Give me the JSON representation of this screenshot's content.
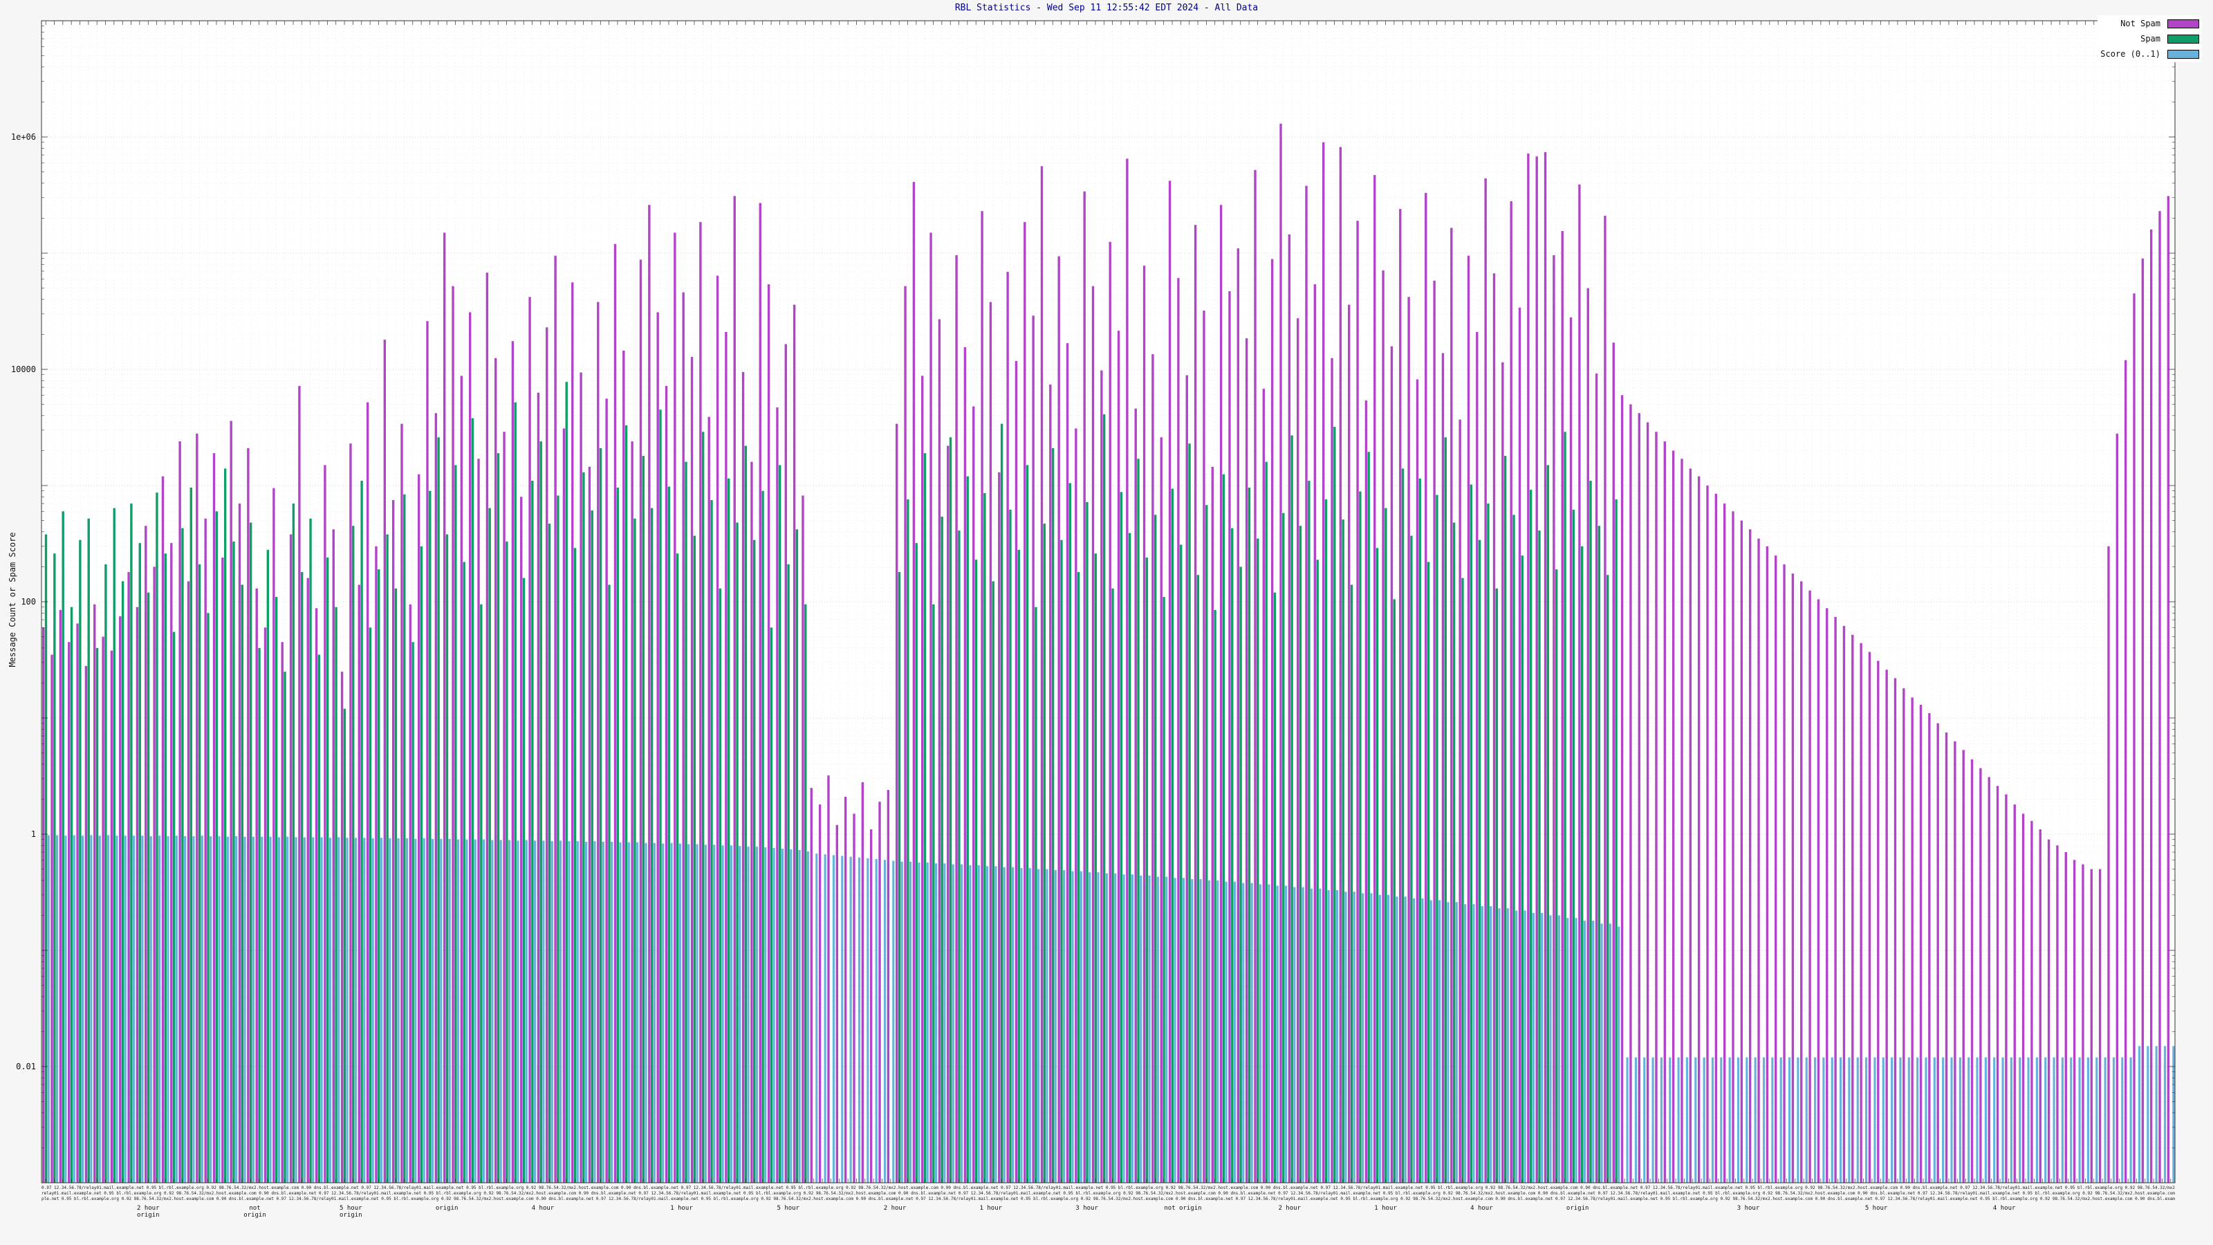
{
  "chart_data": {
    "type": "bar",
    "title": "RBL Statistics - Wed Sep 11 12:55:42 EDT 2024 - All Data",
    "ylabel": "Message Count or Spam Score",
    "yscale": "log",
    "ylim": [
      0.001,
      10000000
    ],
    "grid": true,
    "legend_position": "top-right",
    "yticks": [
      {
        "v": 1000000,
        "label": "1e+06"
      },
      {
        "v": 10000,
        "label": "10000"
      },
      {
        "v": 100,
        "label": "100"
      },
      {
        "v": 1,
        "label": "1"
      },
      {
        "v": 0.01,
        "label": "0.01"
      }
    ],
    "legend": [
      {
        "name": "Not Spam",
        "color": "#b244c8"
      },
      {
        "name": "Spam",
        "color": "#109e68"
      },
      {
        "name": "Score (0..1)",
        "color": "#66b2dd"
      }
    ],
    "series_order": [
      "not_spam",
      "spam",
      "score"
    ],
    "bars_format": "[not_spam_count, spam_count, score]",
    "bars": [
      [
        60,
        380,
        0.98
      ],
      [
        35,
        260,
        0.98
      ],
      [
        85,
        600,
        0.97
      ],
      [
        45,
        90,
        0.98
      ],
      [
        65,
        340,
        0.97
      ],
      [
        28,
        520,
        0.98
      ],
      [
        95,
        40,
        0.97
      ],
      [
        50,
        210,
        0.98
      ],
      [
        38,
        640,
        0.97
      ],
      [
        75,
        150,
        0.97
      ],
      [
        180,
        700,
        0.97
      ],
      [
        90,
        320,
        0.97
      ],
      [
        450,
        120,
        0.96
      ],
      [
        200,
        870,
        0.97
      ],
      [
        1200,
        260,
        0.96
      ],
      [
        320,
        55,
        0.97
      ],
      [
        2400,
        430,
        0.96
      ],
      [
        150,
        960,
        0.96
      ],
      [
        2800,
        210,
        0.97
      ],
      [
        520,
        80,
        0.96
      ],
      [
        1900,
        600,
        0.96
      ],
      [
        240,
        1400,
        0.95
      ],
      [
        3600,
        330,
        0.96
      ],
      [
        700,
        140,
        0.95
      ],
      [
        2100,
        480,
        0.95
      ],
      [
        130,
        40,
        0.95
      ],
      [
        60,
        280,
        0.95
      ],
      [
        950,
        110,
        0.94
      ],
      [
        45,
        25,
        0.95
      ],
      [
        380,
        700,
        0.94
      ],
      [
        7200,
        180,
        0.94
      ],
      [
        160,
        520,
        0.94
      ],
      [
        88,
        35,
        0.94
      ],
      [
        1500,
        240,
        0.93
      ],
      [
        420,
        90,
        0.94
      ],
      [
        25,
        12,
        0.93
      ],
      [
        2300,
        450,
        0.93
      ],
      [
        140,
        1100,
        0.93
      ],
      [
        5200,
        60,
        0.92
      ],
      [
        300,
        190,
        0.93
      ],
      [
        18000,
        380,
        0.92
      ],
      [
        750,
        130,
        0.92
      ],
      [
        3400,
        840,
        0.92
      ],
      [
        95,
        45,
        0.91
      ],
      [
        1250,
        300,
        0.92
      ],
      [
        26000,
        900,
        0.91
      ],
      [
        4200,
        2600,
        0.91
      ],
      [
        150000,
        380,
        0.91
      ],
      [
        52000,
        1500,
        0.9
      ],
      [
        8800,
        220,
        0.9
      ],
      [
        31000,
        3800,
        0.9
      ],
      [
        1700,
        95,
        0.9
      ],
      [
        68000,
        640,
        0.89
      ],
      [
        12500,
        1900,
        0.89
      ],
      [
        2900,
        330,
        0.89
      ],
      [
        17500,
        5200,
        0.88
      ],
      [
        800,
        160,
        0.89
      ],
      [
        42000,
        1100,
        0.88
      ],
      [
        6300,
        2400,
        0.88
      ],
      [
        23000,
        470,
        0.87
      ],
      [
        95000,
        820,
        0.88
      ],
      [
        3100,
        7800,
        0.87
      ],
      [
        56000,
        290,
        0.87
      ],
      [
        9400,
        1300,
        0.86
      ],
      [
        1450,
        610,
        0.87
      ],
      [
        38000,
        2100,
        0.86
      ],
      [
        5600,
        140,
        0.86
      ],
      [
        120000,
        960,
        0.85
      ],
      [
        14500,
        3300,
        0.85
      ],
      [
        2400,
        520,
        0.85
      ],
      [
        88000,
        1800,
        0.84
      ],
      [
        260000,
        640,
        0.84
      ],
      [
        31000,
        4500,
        0.83
      ],
      [
        7200,
        980,
        0.84
      ],
      [
        150000,
        260,
        0.83
      ],
      [
        46000,
        1600,
        0.82
      ],
      [
        12800,
        370,
        0.82
      ],
      [
        185000,
        2900,
        0.81
      ],
      [
        3900,
        750,
        0.81
      ],
      [
        64000,
        130,
        0.8
      ],
      [
        21000,
        1150,
        0.8
      ],
      [
        310000,
        480,
        0.79
      ],
      [
        9500,
        2200,
        0.78
      ],
      [
        1600,
        340,
        0.78
      ],
      [
        270000,
        900,
        0.77
      ],
      [
        54000,
        60,
        0.76
      ],
      [
        4700,
        1500,
        0.75
      ],
      [
        16500,
        210,
        0.74
      ],
      [
        36000,
        420,
        0.73
      ],
      [
        820,
        95,
        0.71
      ],
      [
        2.5,
        null,
        0.68
      ],
      [
        1.8,
        null,
        0.67
      ],
      [
        3.2,
        null,
        0.66
      ],
      [
        1.2,
        null,
        0.65
      ],
      [
        2.1,
        null,
        0.64
      ],
      [
        1.5,
        null,
        0.63
      ],
      [
        2.8,
        null,
        0.62
      ],
      [
        1.1,
        null,
        0.61
      ],
      [
        1.9,
        null,
        0.6
      ],
      [
        2.4,
        null,
        0.59
      ],
      [
        3400,
        180,
        0.58
      ],
      [
        52000,
        760,
        0.58
      ],
      [
        410000,
        320,
        0.57
      ],
      [
        8800,
        1900,
        0.57
      ],
      [
        150000,
        95,
        0.56
      ],
      [
        27000,
        540,
        0.56
      ],
      [
        2200,
        2600,
        0.55
      ],
      [
        96000,
        410,
        0.55
      ],
      [
        15500,
        1200,
        0.54
      ],
      [
        4800,
        230,
        0.54
      ],
      [
        230000,
        860,
        0.53
      ],
      [
        38000,
        150,
        0.53
      ],
      [
        1300,
        3400,
        0.52
      ],
      [
        69000,
        620,
        0.52
      ],
      [
        11800,
        280,
        0.51
      ],
      [
        185000,
        1500,
        0.51
      ],
      [
        29000,
        90,
        0.5
      ],
      [
        560000,
        470,
        0.5
      ],
      [
        7400,
        2100,
        0.49
      ],
      [
        94000,
        340,
        0.49
      ],
      [
        16800,
        1050,
        0.48
      ],
      [
        3100,
        180,
        0.48
      ],
      [
        340000,
        720,
        0.47
      ],
      [
        52000,
        260,
        0.47
      ],
      [
        9800,
        4100,
        0.46
      ],
      [
        125000,
        130,
        0.46
      ],
      [
        21500,
        880,
        0.45
      ],
      [
        650000,
        390,
        0.45
      ],
      [
        4600,
        1700,
        0.44
      ],
      [
        78000,
        240,
        0.44
      ],
      [
        13500,
        560,
        0.43
      ],
      [
        2600,
        110,
        0.43
      ],
      [
        420000,
        940,
        0.42
      ],
      [
        61000,
        310,
        0.42
      ],
      [
        8900,
        2300,
        0.41
      ],
      [
        175000,
        170,
        0.41
      ],
      [
        32000,
        680,
        0.4
      ],
      [
        1450,
        85,
        0.4
      ],
      [
        260000,
        1250,
        0.39
      ],
      [
        47000,
        430,
        0.39
      ],
      [
        110000,
        200,
        0.38
      ],
      [
        18500,
        960,
        0.38
      ],
      [
        520000,
        350,
        0.37
      ],
      [
        6800,
        1600,
        0.37
      ],
      [
        89000,
        120,
        0.36
      ],
      [
        1300000,
        580,
        0.36
      ],
      [
        145000,
        2700,
        0.35
      ],
      [
        27500,
        450,
        0.35
      ],
      [
        380000,
        1100,
        0.34
      ],
      [
        54000,
        230,
        0.34
      ],
      [
        900000,
        760,
        0.33
      ],
      [
        12500,
        3200,
        0.33
      ],
      [
        820000,
        510,
        0.32
      ],
      [
        36000,
        140,
        0.32
      ],
      [
        190000,
        890,
        0.31
      ],
      [
        5400,
        1950,
        0.31
      ],
      [
        470000,
        290,
        0.3
      ],
      [
        71000,
        640,
        0.3
      ],
      [
        15800,
        105,
        0.29
      ],
      [
        240000,
        1400,
        0.29
      ],
      [
        42000,
        370,
        0.28
      ],
      [
        8200,
        1150,
        0.28
      ],
      [
        330000,
        220,
        0.27
      ],
      [
        58000,
        830,
        0.27
      ],
      [
        13800,
        2600,
        0.26
      ],
      [
        165000,
        480,
        0.26
      ],
      [
        3700,
        160,
        0.25
      ],
      [
        95000,
        1020,
        0.25
      ],
      [
        21000,
        340,
        0.24
      ],
      [
        440000,
        700,
        0.24
      ],
      [
        67000,
        130,
        0.23
      ],
      [
        11500,
        1800,
        0.23
      ],
      [
        280000,
        560,
        0.22
      ],
      [
        34000,
        250,
        0.22
      ],
      [
        720000,
        920,
        0.21
      ],
      [
        680000,
        410,
        0.21
      ],
      [
        740000,
        1500,
        0.2
      ],
      [
        96000,
        190,
        0.2
      ],
      [
        155000,
        2900,
        0.19
      ],
      [
        28000,
        620,
        0.19
      ],
      [
        390000,
        300,
        0.18
      ],
      [
        50000,
        1100,
        0.18
      ],
      [
        9200,
        450,
        0.17
      ],
      [
        210000,
        170,
        0.17
      ],
      [
        17000,
        760,
        0.16
      ],
      [
        6000,
        null,
        0.012
      ],
      [
        5000,
        null,
        0.012
      ],
      [
        4200,
        null,
        0.012
      ],
      [
        3500,
        null,
        0.012
      ],
      [
        2900,
        null,
        0.012
      ],
      [
        2400,
        null,
        0.012
      ],
      [
        2000,
        null,
        0.012
      ],
      [
        1700,
        null,
        0.012
      ],
      [
        1400,
        null,
        0.012
      ],
      [
        1200,
        null,
        0.012
      ],
      [
        1000,
        null,
        0.012
      ],
      [
        850,
        null,
        0.012
      ],
      [
        700,
        null,
        0.012
      ],
      [
        600,
        null,
        0.012
      ],
      [
        500,
        null,
        0.012
      ],
      [
        420,
        null,
        0.012
      ],
      [
        350,
        null,
        0.012
      ],
      [
        300,
        null,
        0.012
      ],
      [
        250,
        null,
        0.012
      ],
      [
        210,
        null,
        0.012
      ],
      [
        175,
        null,
        0.012
      ],
      [
        150,
        null,
        0.012
      ],
      [
        125,
        null,
        0.012
      ],
      [
        105,
        null,
        0.012
      ],
      [
        88,
        null,
        0.012
      ],
      [
        74,
        null,
        0.012
      ],
      [
        62,
        null,
        0.012
      ],
      [
        52,
        null,
        0.012
      ],
      [
        44,
        null,
        0.012
      ],
      [
        37,
        null,
        0.012
      ],
      [
        31,
        null,
        0.012
      ],
      [
        26,
        null,
        0.012
      ],
      [
        22,
        null,
        0.012
      ],
      [
        18,
        null,
        0.012
      ],
      [
        15,
        null,
        0.012
      ],
      [
        13,
        null,
        0.012
      ],
      [
        11,
        null,
        0.012
      ],
      [
        9,
        null,
        0.012
      ],
      [
        7.5,
        null,
        0.012
      ],
      [
        6.3,
        null,
        0.012
      ],
      [
        5.3,
        null,
        0.012
      ],
      [
        4.4,
        null,
        0.012
      ],
      [
        3.7,
        null,
        0.012
      ],
      [
        3.1,
        null,
        0.012
      ],
      [
        2.6,
        null,
        0.012
      ],
      [
        2.2,
        null,
        0.012
      ],
      [
        1.8,
        null,
        0.012
      ],
      [
        1.5,
        null,
        0.012
      ],
      [
        1.3,
        null,
        0.012
      ],
      [
        1.1,
        null,
        0.012
      ],
      [
        0.9,
        null,
        0.012
      ],
      [
        0.8,
        null,
        0.012
      ],
      [
        0.7,
        null,
        0.012
      ],
      [
        0.6,
        null,
        0.012
      ],
      [
        0.55,
        null,
        0.012
      ],
      [
        0.5,
        null,
        0.012
      ],
      [
        0.5,
        null,
        0.012
      ],
      [
        300,
        null,
        0.012
      ],
      [
        2800,
        null,
        0.012
      ],
      [
        12000,
        null,
        0.012
      ],
      [
        45000,
        null,
        0.015
      ],
      [
        90000,
        null,
        0.015
      ],
      [
        160000,
        null,
        0.015
      ],
      [
        230000,
        null,
        0.015
      ],
      [
        310000,
        null,
        0.015
      ]
    ],
    "xaxis": {
      "tick_labels_note": "dense per-bar labels, illegible at capture scale",
      "strip_pattern": "0.97 12.34.56.78/relay01.mail.example.net  0.95 bl.rbl.example.org  0.92 98.76.54.32/mx2.host.example.com  0.90 dns.bl.example.net  ",
      "group_labels": [
        {
          "t": "2 hour\norigin",
          "p": 0.05
        },
        {
          "t": "not\norigin",
          "p": 0.1
        },
        {
          "t": "5 hour\norigin",
          "p": 0.145
        },
        {
          "t": "origin",
          "p": 0.19
        },
        {
          "t": "4 hour",
          "p": 0.235
        },
        {
          "t": "1 hour",
          "p": 0.3
        },
        {
          "t": "5 hour",
          "p": 0.35
        },
        {
          "t": "2 hour",
          "p": 0.4
        },
        {
          "t": "1 hour",
          "p": 0.445
        },
        {
          "t": "3 hour",
          "p": 0.49
        },
        {
          "t": "not origin",
          "p": 0.535
        },
        {
          "t": "2 hour",
          "p": 0.585
        },
        {
          "t": "1 hour",
          "p": 0.63
        },
        {
          "t": "4 hour",
          "p": 0.675
        },
        {
          "t": "origin",
          "p": 0.72
        },
        {
          "t": "3 hour",
          "p": 0.8
        },
        {
          "t": "5 hour",
          "p": 0.86
        },
        {
          "t": "4 hour",
          "p": 0.92
        }
      ]
    },
    "colors": {
      "plot_background": "#ffffff",
      "page_background": "#f6f6f6",
      "grid_major": "#c6c6c6",
      "grid_minor": "#e6e6e6",
      "grid_vertical": "#dcdcdc",
      "border": "#333333",
      "title_text": "#00008b"
    }
  }
}
